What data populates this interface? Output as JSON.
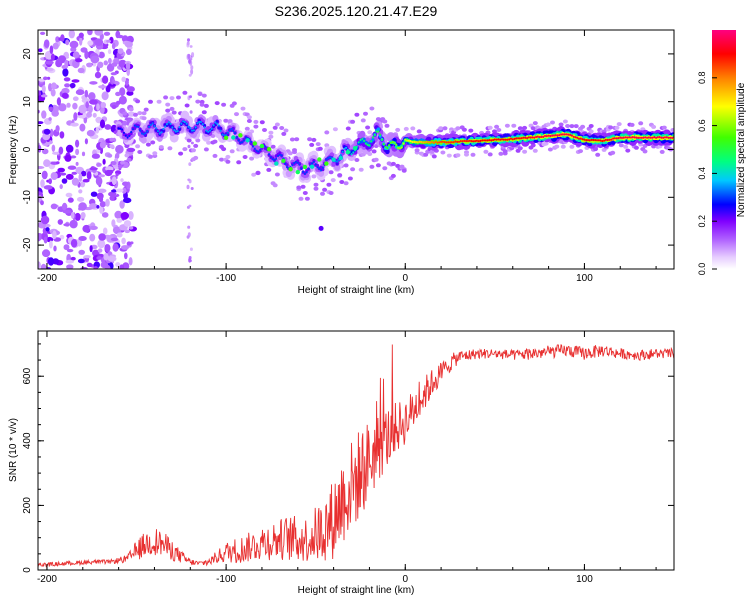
{
  "figure_title": "S236.2025.120.21.47.E29",
  "colors": {
    "snr_line": "#e83030",
    "axis": "#000000",
    "background": "#ffffff",
    "colormap": [
      "#ffffff",
      "#e6ccff",
      "#b266ff",
      "#8000ff",
      "#0000ff",
      "#00c8ff",
      "#00ff80",
      "#40ff00",
      "#ffff00",
      "#ff8000",
      "#ff0000",
      "#ff0080"
    ]
  },
  "chart_data": [
    {
      "type": "heatmap",
      "xlabel": "Height of straight line (km)",
      "ylabel": "Frequency (Hz)",
      "xlim": [
        -205,
        150
      ],
      "ylim": [
        -25,
        25
      ],
      "xticks": [
        -200,
        -100,
        0,
        100
      ],
      "yticks": [
        -20,
        -10,
        0,
        10,
        20
      ],
      "colorbar": {
        "label": "Normalized spectral amplitude",
        "range": [
          0.0,
          1.0
        ],
        "ticks": [
          0.0,
          0.2,
          0.4,
          0.6,
          0.8
        ]
      },
      "ridge": {
        "description_points_x": [
          -165,
          -150,
          -135,
          -120,
          -105,
          -95,
          -85,
          -75,
          -65,
          -55,
          -45,
          -35,
          -25,
          -15,
          -10,
          -5,
          0,
          5,
          10,
          20,
          40,
          60,
          80,
          90,
          100,
          110,
          120,
          150
        ],
        "description_points_y": [
          3,
          4,
          4.5,
          5,
          4.5,
          3,
          1,
          -1,
          -3,
          -4,
          -3,
          -1,
          1,
          3,
          1,
          0.5,
          2,
          1.5,
          1.5,
          1.5,
          1.8,
          2.2,
          2.8,
          3.2,
          2,
          1.8,
          2.5,
          2.5
        ]
      },
      "ridge_amplitude": [
        0.25,
        0.3,
        0.35,
        0.35,
        0.35,
        0.3,
        0.3,
        0.3,
        0.3,
        0.3,
        0.3,
        0.35,
        0.45,
        0.5,
        0.55,
        0.6,
        0.65,
        0.7,
        0.75,
        0.85,
        0.9,
        0.9,
        0.95,
        0.95,
        0.9,
        0.9,
        0.95,
        0.95
      ],
      "noise_region_x": [
        -205,
        -160
      ],
      "scatter_column_x": -120
    },
    {
      "type": "line",
      "xlabel": "Height of straight line (km)",
      "ylabel": "SNR (10 * v/v)",
      "xlim": [
        -205,
        150
      ],
      "ylim": [
        0,
        740
      ],
      "xticks": [
        -200,
        -100,
        0,
        100
      ],
      "yticks": [
        0,
        200,
        400,
        600
      ],
      "series": [
        {
          "x": [
            -205,
            -190,
            -175,
            -165,
            -155,
            -150,
            -145,
            -140,
            -135,
            -130,
            -125,
            -120,
            -115,
            -110,
            -105,
            -100,
            -95,
            -90,
            -85,
            -80,
            -75,
            -70,
            -65,
            -60,
            -55,
            -50,
            -45,
            -40,
            -35,
            -30,
            -25,
            -20,
            -15,
            -10,
            -5,
            0,
            5,
            10,
            15,
            20,
            25,
            30,
            40,
            50,
            60,
            70,
            80,
            90,
            100,
            110,
            120,
            130,
            140,
            150
          ],
          "y": [
            15,
            20,
            25,
            25,
            35,
            60,
            80,
            90,
            80,
            60,
            40,
            25,
            20,
            25,
            40,
            55,
            60,
            65,
            75,
            85,
            90,
            95,
            100,
            95,
            95,
            110,
            130,
            160,
            220,
            260,
            300,
            340,
            380,
            410,
            440,
            460,
            500,
            540,
            580,
            610,
            640,
            660,
            670,
            670,
            665,
            670,
            675,
            680,
            670,
            680,
            670,
            665,
            670,
            670
          ],
          "noise": [
            8,
            8,
            8,
            8,
            15,
            40,
            50,
            55,
            50,
            40,
            25,
            12,
            10,
            15,
            25,
            40,
            50,
            55,
            60,
            70,
            75,
            80,
            90,
            90,
            90,
            110,
            130,
            160,
            180,
            180,
            180,
            160,
            140,
            120,
            100,
            90,
            80,
            70,
            55,
            45,
            35,
            25,
            20,
            20,
            20,
            25,
            25,
            25,
            25,
            25,
            20,
            20,
            20,
            20
          ]
        }
      ]
    }
  ]
}
